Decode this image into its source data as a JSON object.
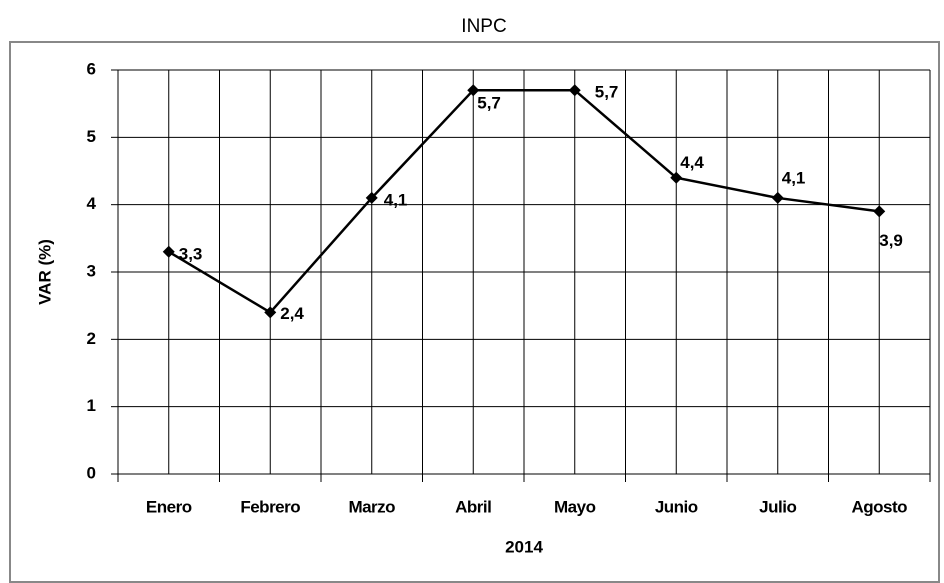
{
  "chart_data": {
    "type": "line",
    "title": "INPC",
    "x_label": "2014",
    "y_label": "VAR (%)",
    "categories": [
      "Enero",
      "Febrero",
      "Marzo",
      "Abril",
      "Mayo",
      "Junio",
      "Julio",
      "Agosto"
    ],
    "series": [
      {
        "name": "INPC",
        "color": "#000000",
        "values": [
          3.3,
          2.4,
          4.1,
          5.7,
          5.7,
          4.4,
          4.1,
          3.9
        ],
        "value_labels": [
          "3,3",
          "2,4",
          "4,1",
          "5,7",
          "5,7",
          "4,4",
          "4,1",
          "3,9"
        ]
      }
    ],
    "ylim": [
      0,
      6
    ],
    "yticks": [
      0,
      1,
      2,
      3,
      4,
      5,
      6
    ],
    "grid": true
  }
}
